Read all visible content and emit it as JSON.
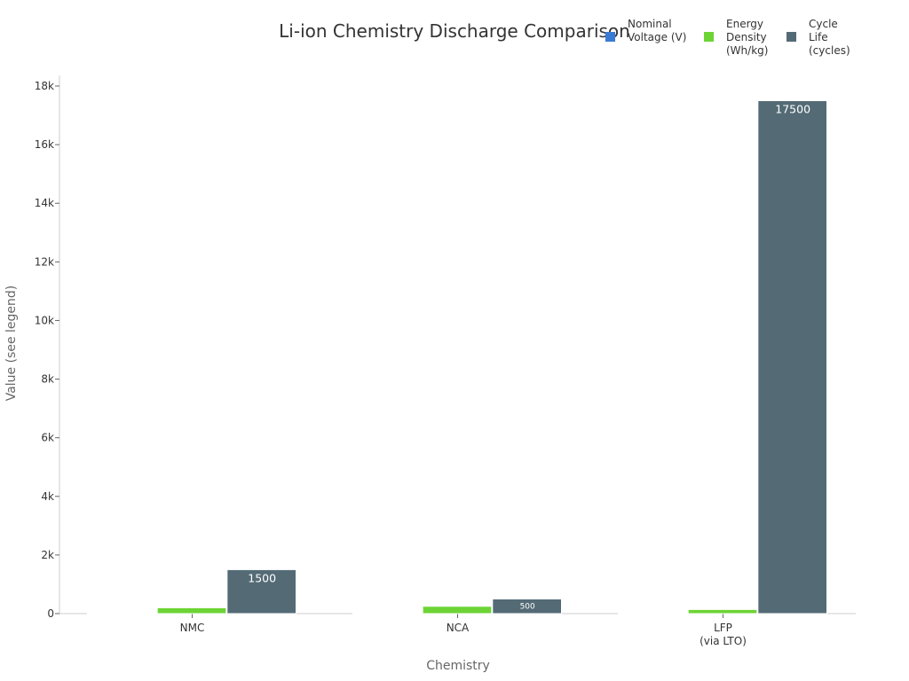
{
  "chart_data": {
    "type": "bar",
    "title": "Li-ion Chemistry Discharge Comparison",
    "xlabel": "Chemistry",
    "ylabel": "Value (see legend)",
    "categories": [
      [
        "NMC"
      ],
      [
        "NCA"
      ],
      [
        "LFP",
        "(via LTO)"
      ]
    ],
    "ylim": [
      0,
      18000
    ],
    "yticks": [
      0,
      2000,
      4000,
      6000,
      8000,
      10000,
      12000,
      14000,
      16000,
      18000
    ],
    "ytick_labels": [
      "0",
      "2k",
      "4k",
      "6k",
      "8k",
      "10k",
      "12k",
      "14k",
      "16k",
      "18k"
    ],
    "legend_position": "top-right",
    "grid": false,
    "series": [
      {
        "name": [
          "Nominal",
          "Voltage (V)"
        ],
        "values": [
          3.7,
          3.6,
          3.2
        ],
        "color": "#3a7bd5",
        "labels": [
          "",
          "",
          ""
        ]
      },
      {
        "name": [
          "Energy",
          "Density",
          "(Wh/kg)"
        ],
        "values": [
          200,
          250,
          140
        ],
        "color": "#6dd435",
        "labels": [
          "",
          "",
          ""
        ]
      },
      {
        "name": [
          "Cycle",
          "Life",
          "(cycles)"
        ],
        "values": [
          1500,
          500,
          17500
        ],
        "color": "#546b76",
        "labels": [
          "1500",
          "500",
          "17500"
        ]
      }
    ]
  }
}
